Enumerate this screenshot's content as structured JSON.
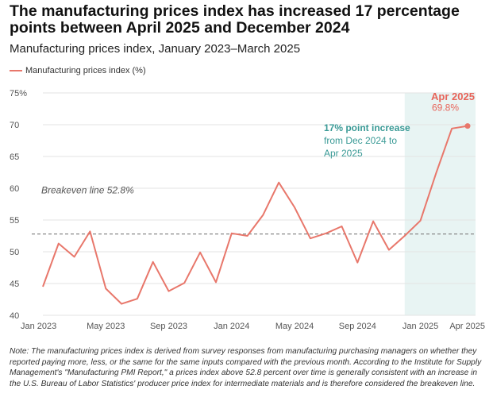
{
  "title": "The manufacturing prices index has increased 17 percentage points between April 2025 and December 2024",
  "subtitle": "Manufacturing prices index, January 2023–March 2025",
  "legend": "Manufacturing prices index (%)",
  "note": "Note: The manufacturing prices index is derived from survey responses from manufacturing purchasing managers on whether they reported paying more, less, or the same for the same inputs compared with the previous month. According to the Institute for Supply Management's \"Manufacturing PMI Report,\" a prices index above 52.8 percent over time is generally consistent with an increase in the U.S. Bureau of Labor Statistics' producer price index for intermediate materials and is therefore considered the breakeven line.",
  "colors": {
    "line": "#e8776b",
    "highlight_fill": "#e8f4f3",
    "teal_text": "#3a9a96",
    "red_text": "#e8645a",
    "breakeven": "#888888",
    "grid": "#e3e3e3",
    "axis_text": "#555555"
  },
  "chart_data": {
    "type": "line",
    "title": "Manufacturing prices index, January 2023–March 2025",
    "xlabel": "",
    "ylabel": "",
    "ylim": [
      40,
      75
    ],
    "y_ticks": [
      40,
      45,
      50,
      55,
      60,
      65,
      70,
      75
    ],
    "y_tick_labels": [
      "40",
      "45",
      "50",
      "55",
      "60",
      "65",
      "70",
      "75%"
    ],
    "x_tick_labels": [
      "Jan 2023",
      "May 2023",
      "Sep 2023",
      "Jan 2024",
      "May 2024",
      "Sep 2024",
      "Jan 2025",
      "Apr 2025"
    ],
    "x_tick_index": [
      0,
      4,
      8,
      12,
      16,
      20,
      24,
      27
    ],
    "series": [
      {
        "name": "Manufacturing prices index (%)",
        "x": [
          "Jan 2023",
          "Feb 2023",
          "Mar 2023",
          "Apr 2023",
          "May 2023",
          "Jun 2023",
          "Jul 2023",
          "Aug 2023",
          "Sep 2023",
          "Oct 2023",
          "Nov 2023",
          "Dec 2023",
          "Jan 2024",
          "Feb 2024",
          "Mar 2024",
          "Apr 2024",
          "May 2024",
          "Jun 2024",
          "Jul 2024",
          "Aug 2024",
          "Sep 2024",
          "Oct 2024",
          "Nov 2024",
          "Dec 2024",
          "Jan 2025",
          "Feb 2025",
          "Mar 2025",
          "Apr 2025"
        ],
        "values": [
          44.5,
          51.3,
          49.2,
          53.2,
          44.2,
          41.8,
          42.6,
          48.4,
          43.8,
          45.1,
          49.9,
          45.2,
          52.9,
          52.5,
          55.8,
          60.9,
          57.0,
          52.1,
          52.9,
          54.0,
          48.3,
          54.8,
          50.3,
          52.5,
          54.9,
          62.4,
          69.4,
          69.8
        ]
      }
    ],
    "breakeven": {
      "value": 52.8,
      "label": "Breakeven line 52.8%"
    },
    "highlight": {
      "from": "Dec 2024",
      "to": "Apr 2025",
      "annotation_bold": "17% point increase",
      "annotation_rest": [
        "from Dec 2024 to",
        "Apr 2025"
      ]
    },
    "end_label": {
      "title": "Apr 2025",
      "value": "69.8%"
    }
  }
}
